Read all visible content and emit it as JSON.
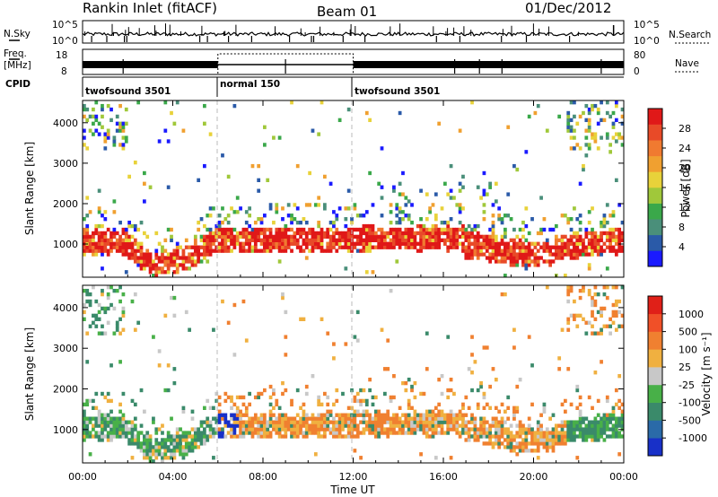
{
  "header": {
    "station": "Rankin Inlet (fitACF)",
    "beam": "Beam 01",
    "date": "01/Dec/2012"
  },
  "status_panels": {
    "left_labels": {
      "nsky": "N.Sky",
      "freq": "Freq.",
      "freq_unit": "[MHz]",
      "cpid": "CPID"
    },
    "right_labels": {
      "nsearch": "N.Search",
      "nave": "Nave"
    },
    "nsky_ticks": [
      "10^5",
      "10^0"
    ],
    "nsearch_ticks": [
      "10^5",
      "10^0"
    ],
    "freq_ticks": [
      "18",
      "8"
    ],
    "nave_ticks": [
      "80",
      "0"
    ],
    "cpid_segments": [
      {
        "label": "twofsound 3501",
        "start_hour": 0,
        "end_hour": 6
      },
      {
        "label": "normal 150",
        "start_hour": 6,
        "end_hour": 12
      },
      {
        "label": "twofsound 3501",
        "start_hour": 12,
        "end_hour": 24
      }
    ]
  },
  "chart_data": [
    {
      "type": "heatmap",
      "panel": "power",
      "xlabel": "Time UT",
      "ylabel": "Slant Range [km]",
      "x_range_hours": [
        0,
        24
      ],
      "ylim": [
        180,
        4550
      ],
      "x_ticks": [
        "00:00",
        "04:00",
        "08:00",
        "12:00",
        "16:00",
        "20:00",
        "00:00"
      ],
      "y_ticks": [
        "1000",
        "2000",
        "3000",
        "4000"
      ],
      "y_tick_values": [
        1000,
        2000,
        3000,
        4000
      ],
      "colorbar": {
        "label": "Power [dB]",
        "tick_labels": [
          "4",
          "8",
          "12",
          "16",
          "20",
          "24",
          "28"
        ],
        "colors": [
          "#1a1aff",
          "#2a5aa8",
          "#4a8f7a",
          "#3aa84a",
          "#a0c83a",
          "#e8d23a",
          "#f0a030",
          "#f07a30",
          "#e84a28",
          "#e01818"
        ]
      }
    },
    {
      "type": "heatmap",
      "panel": "velocity",
      "xlabel": "Time UT",
      "ylabel": "Slant Range [km]",
      "x_range_hours": [
        0,
        24
      ],
      "ylim": [
        180,
        4550
      ],
      "x_ticks": [
        "00:00",
        "04:00",
        "08:00",
        "12:00",
        "16:00",
        "20:00",
        "00:00"
      ],
      "y_ticks": [
        "1000",
        "2000",
        "3000",
        "4000"
      ],
      "y_tick_values": [
        1000,
        2000,
        3000,
        4000
      ],
      "colorbar": {
        "label": "Velocity [m s⁻¹]",
        "tick_labels": [
          "1000",
          "500",
          "100",
          "25",
          "-25",
          "-100",
          "-500",
          "-1000"
        ],
        "colors": [
          "#1830c8",
          "#2a6aa8",
          "#3a8a6a",
          "#48b048",
          "#c8c8c8",
          "#f0b040",
          "#f08030",
          "#f05028",
          "#e02018"
        ]
      }
    }
  ]
}
